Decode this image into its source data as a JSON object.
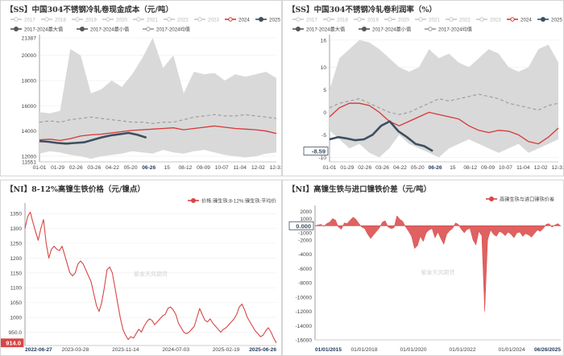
{
  "colors": {
    "y2024": "#d93636",
    "y2025": "#3d4f60",
    "band": "#d9d9d9",
    "avg": "#9a9a9a",
    "area": "#d94545",
    "axis": "#888888"
  },
  "chart_data": [
    {
      "type": "line",
      "title": "【SS】中国304不锈钢冷轧卷现金成本（元/吨）",
      "legend": [
        {
          "label": "2017"
        },
        {
          "label": "2018"
        },
        {
          "label": "2019"
        },
        {
          "label": "2020"
        },
        {
          "label": "2021"
        },
        {
          "label": "2022"
        },
        {
          "label": "2023"
        },
        {
          "label": "2024"
        },
        {
          "label": "2025"
        },
        {
          "label": "2017-2024最大值"
        },
        {
          "label": "2017-2024最小值"
        },
        {
          "label": "2017-2024均值"
        }
      ],
      "x_ticks": [
        "01-01",
        "01-29",
        "02-26",
        "03-26",
        "04-22",
        "05-20",
        "06-26",
        "15",
        "08-12",
        "09-09",
        "10-07",
        "11-04",
        "12-02",
        "12-31"
      ],
      "y_ticks": [
        "21387",
        "20000",
        "18000",
        "16000",
        "14000",
        "12000",
        "11551"
      ],
      "ylim": [
        11551,
        21387
      ],
      "last_value_label": "13474",
      "watermark": "紫金天风期货",
      "series": [
        {
          "name": "2024",
          "values": [
            13300,
            13350,
            13250,
            13400,
            13600,
            13700,
            13750,
            13850,
            13950,
            14050,
            14100,
            14150,
            14200,
            14250,
            14100,
            14200,
            14300,
            14400,
            14300,
            14200,
            14150,
            14100,
            14000,
            13800
          ]
        },
        {
          "name": "2025",
          "values": [
            13200,
            13150,
            13050,
            13000,
            13050,
            13100,
            13300,
            13500,
            13650,
            13750,
            13850,
            13700,
            13474
          ]
        },
        {
          "name": "2017-2024最大值",
          "values": [
            15500,
            15400,
            15600,
            20500,
            20000,
            17000,
            17300,
            18000,
            17500,
            18500,
            19800,
            21387,
            19000,
            20000,
            17000,
            18700,
            18500,
            18600,
            18000,
            18500,
            18300,
            18500,
            18700,
            18200
          ]
        },
        {
          "name": "2017-2024最小值",
          "values": [
            12200,
            12400,
            12300,
            12100,
            12000,
            11800,
            12000,
            12100,
            12200,
            12400,
            12300,
            12200,
            12500,
            12300,
            12200,
            12400,
            12500,
            12300,
            12100,
            12000,
            11900,
            12000,
            12200,
            12300
          ]
        },
        {
          "name": "2017-2024均值",
          "values": [
            14700,
            14800,
            14700,
            14900,
            15000,
            15100,
            15000,
            14900,
            14800,
            14700,
            14700,
            14600,
            14700,
            14700,
            14900,
            15100,
            15200,
            15300,
            15200,
            15200,
            15300,
            15200,
            15100,
            15000
          ]
        }
      ]
    },
    {
      "type": "line",
      "title": "【SS】中国304不锈钢冷轧卷利润率（%）",
      "legend": [
        {
          "label": "2017"
        },
        {
          "label": "2018"
        },
        {
          "label": "2019"
        },
        {
          "label": "2020"
        },
        {
          "label": "2021"
        },
        {
          "label": "2022"
        },
        {
          "label": "2023"
        },
        {
          "label": "2024"
        },
        {
          "label": "2025"
        },
        {
          "label": "2017-2024最大值"
        },
        {
          "label": "2017-2024最小值"
        },
        {
          "label": "2017-2024均值"
        }
      ],
      "x_ticks": [
        "01-01",
        "01-29",
        "02-26",
        "03-26",
        "04-22",
        "05-20",
        "06-26",
        "15",
        "08-12",
        "09-09",
        "10-07",
        "11-04",
        "12-02",
        "12-31"
      ],
      "y_ticks": [
        "16",
        "10",
        "5",
        "0",
        "-5",
        "-8.59",
        "-10"
      ],
      "ylim": [
        -11,
        16.5
      ],
      "last_value_label": "-8.59",
      "watermark": "紫金天风期货",
      "series": [
        {
          "name": "2024",
          "values": [
            -1,
            1,
            2,
            2,
            1.5,
            0,
            -2,
            -3,
            -2,
            -1,
            0,
            -0.5,
            -1,
            -1.5,
            -3,
            -4,
            -4.5,
            -4,
            -4.2,
            -5,
            -6.5,
            -7,
            -5.5,
            -3.5
          ]
        },
        {
          "name": "2025",
          "values": [
            -6,
            -5.5,
            -5.8,
            -6.2,
            -6,
            -5,
            -3,
            -2,
            -4.2,
            -5.5,
            -7,
            -7.5,
            -8.59
          ]
        },
        {
          "name": "2017-2024最大值",
          "values": [
            5,
            12,
            14,
            16,
            15.5,
            14,
            12,
            10,
            9,
            10,
            14,
            12,
            13,
            11,
            10,
            12,
            14,
            13,
            10,
            9,
            10,
            14,
            15,
            11
          ]
        },
        {
          "name": "2017-2024最小值",
          "values": [
            -4,
            -6,
            -8,
            -7,
            -9,
            -10,
            -8,
            -5,
            -7,
            -8,
            -9,
            -10,
            -8,
            -7,
            -6,
            -7,
            -8,
            -9,
            -8,
            -7,
            -9,
            -8,
            -7,
            -6
          ]
        },
        {
          "name": "2017-2024均值",
          "values": [
            1,
            2,
            2.5,
            3,
            2,
            1,
            0,
            -0.5,
            0,
            1,
            2,
            3,
            2.5,
            3,
            3.5,
            4,
            3.5,
            3,
            2,
            1.5,
            1,
            0.5,
            1.5,
            2
          ]
        }
      ]
    },
    {
      "type": "line",
      "title": "【NI】8-12%高镍生铁价格（元/镍点）",
      "legend": [
        {
          "label": "价格:镍生铁:8-12%:镍生铁:平均价"
        }
      ],
      "x_ticks": [
        "2022-06-27",
        "2023-03-28",
        "2023-11-14",
        "2024-07-03",
        "2025-02-19",
        "2025-06-26"
      ],
      "y_ticks": [
        "1350",
        "1300",
        "1250",
        "1200",
        "1150",
        "1100",
        "1050",
        "1000",
        "950.0",
        "914.0"
      ],
      "ylim": [
        905,
        1375
      ],
      "last_value_label": "914.0",
      "watermark": "紫金天风期货",
      "series": [
        {
          "name": "价格:镍生铁:8-12%:镍生铁:平均价",
          "values": [
            1300,
            1340,
            1355,
            1320,
            1290,
            1260,
            1300,
            1330,
            1250,
            1200,
            1230,
            1240,
            1230,
            1225,
            1240,
            1210,
            1180,
            1150,
            1140,
            1150,
            1180,
            1190,
            1180,
            1160,
            1140,
            1120,
            1080,
            1040,
            1020,
            1050,
            1100,
            1160,
            1170,
            1150,
            1100,
            1050,
            1000,
            960,
            940,
            925,
            935,
            930,
            945,
            960,
            950,
            970,
            985,
            995,
            990,
            975,
            985,
            995,
            1005,
            1010,
            1030,
            1035,
            1025,
            1010,
            980,
            965,
            950,
            945,
            950,
            960,
            970,
            1000,
            1030,
            1010,
            990,
            985,
            995,
            980,
            970,
            960,
            950,
            960,
            965,
            975,
            985,
            995,
            1010,
            1035,
            1045,
            1025,
            1000,
            985,
            970,
            955,
            945,
            935,
            940,
            955,
            965,
            950,
            930,
            914
          ]
        }
      ]
    },
    {
      "type": "area",
      "title": "【NI】高镍生铁与进口镍铁价差（元/吨）",
      "legend": [
        {
          "label": "高镍生铁与进口镍铁价差"
        }
      ],
      "x_ticks": [
        "01/01/2015",
        "01/01/2018",
        "01/01/2020",
        "01/01/2022",
        "01/01/2024",
        "06/26/2025"
      ],
      "y_ticks": [
        "2000",
        "1000",
        "0.000",
        "-1000",
        "-2000",
        "-4000",
        "-6000",
        "-8000",
        "-10000",
        "-12000",
        "-14000",
        "-16000"
      ],
      "ylim": [
        -16000,
        2400
      ],
      "last_value_label": "0.000",
      "watermark": "紫金天风期货",
      "series": [
        {
          "name": "高镍生铁与进口镍铁价差",
          "values": [
            0,
            100,
            200,
            -100,
            300,
            500,
            1000,
            800,
            -200,
            -500,
            400,
            300,
            800,
            1200,
            900,
            300,
            -200,
            -400,
            -1200,
            -1800,
            -1300,
            -800,
            -300,
            500,
            700,
            -200,
            -400,
            -300,
            1400,
            900,
            600,
            -200,
            -800,
            -1500,
            -3200,
            -2800,
            -1500,
            -2200,
            -1000,
            -600,
            -400,
            -1700,
            -900,
            -1800,
            -2600,
            -1200,
            -700,
            -400,
            400,
            200,
            -500,
            -1000,
            -500,
            -400,
            -2000,
            -2700,
            -800,
            -1400,
            -12000,
            -2000,
            -600,
            -1200,
            -1500,
            -800,
            -1000,
            -1400,
            -900,
            -1200,
            -1700,
            -1000,
            -900,
            -1500,
            -1100,
            -1300,
            -1600,
            -1100,
            -600,
            -800,
            -400,
            200,
            300,
            -200,
            100,
            300,
            0
          ]
        }
      ]
    }
  ]
}
